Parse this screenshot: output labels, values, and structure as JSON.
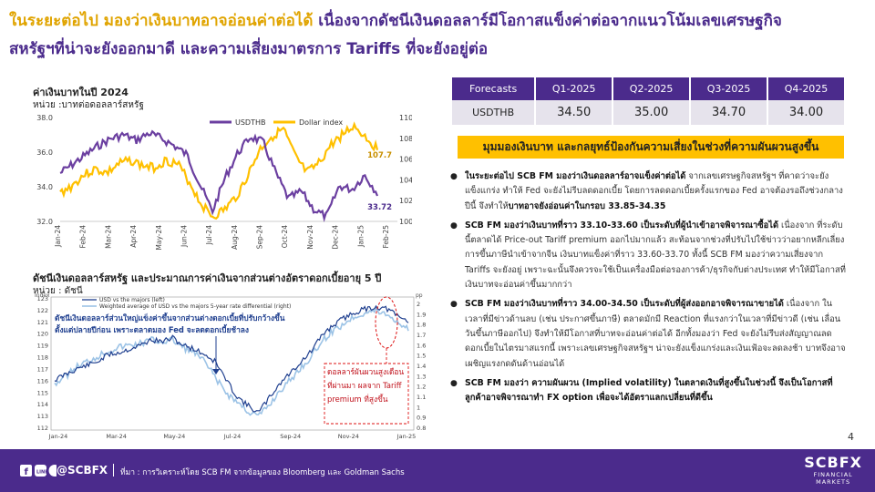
{
  "title": {
    "line1": "ในระยะต่อไป มองว่าเงินบาทอาจอ่อนค่าต่อได้",
    "line1_rest": " เนื่องจากดัชนีเงินดอลลาร์มีโอกาสแข็งค่าต่อจากแนวโน้มเลขเศรษฐกิจ",
    "line2": "สหรัฐฯที่น่าจะยังออกมาดี และความเสี่ยงมาตรการ Tariffs ที่จะยังอยู่ต่อ"
  },
  "chart1_header": {
    "title": "ค่าเงินบาทในปี 2024",
    "unit": "หน่วย :บาทต่อดอลลาร์สหรัฐ"
  },
  "chart2_header": {
    "title": "ดัชนีเงินดอลลาร์สหรัฐ และประมาณการค่าเงินจากส่วนต่างอัตราดอกเบี้ยอายุ 5 ปี",
    "unit": "หน่วย : ดัชนี"
  },
  "forecast_table": {
    "headers": [
      "Forecasts",
      "Q1-2025",
      "Q2-2025",
      "Q3-2025",
      "Q4-2025"
    ],
    "row_label": "USDTHB",
    "values": [
      "34.50",
      "35.00",
      "34.70",
      "34.00"
    ]
  },
  "banner": "มุมมองเงินบาท และกลยุทธ์ป้องกันความเสี่ยงในช่วงที่ความผันผวนสูงขึ้น",
  "bullets": [
    {
      "bold": "ในระยะต่อไป SCB FM มองว่าเงินดอลลาร์อาจแข็งค่าต่อได้",
      "text": " จากเลขเศรษฐกิจสหรัฐฯ ที่คาดว่าจะยังแข็งแกร่ง ทำให้ Fed จะยังไม่รีบลดดอกเบี้ย โดยการลดดอกเบี้ยครั้งแรกของ Fed อาจต้องรอถึงช่วงกลางปีนี้ จึงทำให้",
      "bold2": "บาทอาจยังอ่อนค่าในกรอบ 33.85-34.35"
    },
    {
      "bold": "SCB FM มองว่าเงินบาทที่ราว 33.10-33.60 เป็นระดับที่ผู้นำเข้าอาจพิจารณาซื้อได้",
      "text": " เนื่องจาก ที่ระดับนี้ตลาดได้ Price-out Tariff premium ออกไปมากแล้ว สะท้อนจากช่วงที่ปรับไปใช้ข่าวว่าอยากหลีกเลี่ยงการขึ้นภาษีนำเข้าจากจีน เงินบาทแข็งค่าที่ราว 33.60-33.70 ทั้งนี้ SCB FM มองว่าความเสี่ยงจาก Tariffs จะยังอยู่ เพราะฉะนั้นจึงควรจะใช้เป็นเครื่องมือต่อรองการค้า/ธุรกิจกับต่างประเทศ ทำให้มีโอกาสที่เงินบาทจะอ่อนค่าขึ้นมากกว่า",
      "bold2": ""
    },
    {
      "bold": "SCB FM มองว่าเงินบาทที่ราว 34.00-34.50 เป็นระดับที่ผู้ส่งออกอาจพิจารณาขายได้",
      "text": " เนื่องจาก ในเวลาที่มีข่าวด้านลบ (เช่น ประกาศขึ้นภาษี) ตลาดมักมี Reaction ที่แรงกว่าในเวลาที่มีข่าวดี (เช่น เลื่อนวันขึ้นภาษีออกไป) จึงทำให้มีโอกาสที่บาทจะอ่อนค่าต่อได้ อีกทั้งมองว่า Fed จะยังไม่รีบส่งสัญญาณลดดอกเบี้ยในไตรมาสแรกนี้ เพราะเลขเศรษฐกิจสหรัฐฯ น่าจะยังแข็งแกร่งและเงินเฟ้อจะลดลงช้า บาทจึงอาจเผชิญแรงกดดันด้านอ่อนได้",
      "bold2": ""
    },
    {
      "bold": "SCB FM มองว่า ความผันผวน (Implied volatility) ในตลาดเงินที่สูงขึ้นในช่วงนี้ จึงเป็นโอกาสที่ลูกค้าอาจพิจารณาทำ FX option เพื่อจะได้อัตราแลกเปลี่ยนที่ดีขึ้น",
      "text": "",
      "bold2": ""
    }
  ],
  "chart1": {
    "type": "line",
    "legend": [
      "USDTHB",
      "Dollar index"
    ],
    "x_labels": [
      "Jan-24",
      "Feb-24",
      "Mar-24",
      "Apr-24",
      "May-24",
      "Jun-24",
      "Jul-24",
      "Aug-24",
      "Sep-24",
      "Oct-24",
      "Nov-24",
      "Dec-24",
      "Jan-25",
      "Feb-25"
    ],
    "y_left_ticks": [
      "38.0",
      "36.0",
      "34.0",
      "32.0"
    ],
    "y_right_ticks": [
      "110.0",
      "108.0",
      "106.0",
      "104.0",
      "102.0",
      "100.0"
    ],
    "end_label_dxy": "107.7",
    "end_label_thb": "33.72",
    "color_thb": "#6b3fa0",
    "color_dxy": "#ffc000"
  },
  "chart2": {
    "type": "line",
    "legend": [
      "USD vs the majors (left)",
      "Weighted average of USD vs the majors 5-year rate differential (right)"
    ],
    "x_labels": [
      "Jan-24",
      "Mar-24",
      "May-24",
      "Jul-24",
      "Sep-24",
      "Nov-24",
      "Jan-25"
    ],
    "y_left_ticks": [
      "123",
      "122",
      "121",
      "120",
      "119",
      "118",
      "117",
      "116",
      "115",
      "114",
      "113",
      "112"
    ],
    "y_right_ticks": [
      "2",
      "1.9",
      "1.8",
      "1.7",
      "1.6",
      "1.5",
      "1.4",
      "1.3",
      "1.2",
      "1.1",
      "1",
      "0.9",
      "0.8"
    ],
    "axis_left_unit": "Index",
    "axis_right_unit": "pp",
    "annotation_left": "ดัชนีเงินดอลลาร์ส่วนใหญ่แข็งค่าขึ้นจากส่วนต่างดอกเบี้ยที่ปรับกว้างขึ้นตั้งแต่ปลายปีก่อน เพราะตลาดมอง Fed จะลดดอกเบี้ยช้าลง",
    "annotation_right": "ดอลลาร์ผันผวนสูงเดือนที่ผ่านมา ผลจาก Tariff premium ที่สูงขึ้น",
    "color_usd": "#1f3f8f",
    "color_diff": "#9cc3e6"
  },
  "page_number": "4",
  "footer": {
    "social": "@SCBFX",
    "source": "ที่มา : การวิเคราะห์โดย SCB FM จากข้อมูลของ Bloomberg และ Goldman Sachs",
    "brand": "SCBFX",
    "brand_sub1": "FINANCIAL",
    "brand_sub2": "MARKETS"
  }
}
